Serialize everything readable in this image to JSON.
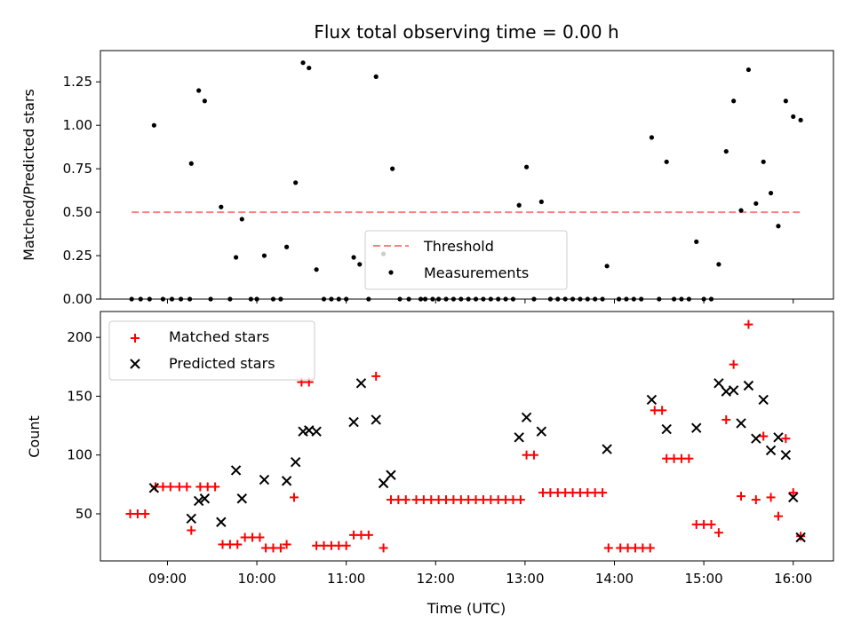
{
  "chart_data": [
    {
      "type": "scatter",
      "title": "Flux total observing time = 0.00 h",
      "xlabel": "",
      "ylabel": "Matched/Predicted stars",
      "ylim": [
        0,
        1.43
      ],
      "yticks": [
        "0.00",
        "0.25",
        "0.50",
        "0.75",
        "1.00",
        "1.25"
      ],
      "threshold": {
        "name": "Threshold",
        "value": 0.5,
        "x_range": [
          "08:36",
          "16:06"
        ],
        "color": "#ff7f7f",
        "style": "dashed"
      },
      "series": [
        {
          "name": "Measurements",
          "color": "#000000",
          "marker": "dot",
          "points": [
            [
              "08:36",
              0
            ],
            [
              "08:42",
              0
            ],
            [
              "08:48",
              0
            ],
            [
              "08:51",
              1.0
            ],
            [
              "08:57",
              0
            ],
            [
              "09:03",
              0
            ],
            [
              "09:09",
              0
            ],
            [
              "09:15",
              0
            ],
            [
              "09:16",
              0.78
            ],
            [
              "09:21",
              1.2
            ],
            [
              "09:25",
              1.14
            ],
            [
              "09:29",
              0
            ],
            [
              "09:36",
              0.53
            ],
            [
              "09:42",
              0
            ],
            [
              "09:46",
              0.24
            ],
            [
              "09:50",
              0.46
            ],
            [
              "09:56",
              0
            ],
            [
              "10:00",
              0
            ],
            [
              "10:05",
              0.25
            ],
            [
              "10:11",
              0
            ],
            [
              "10:16",
              0
            ],
            [
              "10:20",
              0.3
            ],
            [
              "10:26",
              0.67
            ],
            [
              "10:31",
              1.36
            ],
            [
              "10:35",
              1.33
            ],
            [
              "10:40",
              0.17
            ],
            [
              "10:45",
              0
            ],
            [
              "10:50",
              0
            ],
            [
              "10:55",
              0
            ],
            [
              "11:00",
              0
            ],
            [
              "11:05",
              0.24
            ],
            [
              "11:09",
              0.2
            ],
            [
              "11:15",
              0
            ],
            [
              "11:20",
              1.28
            ],
            [
              "11:25",
              0.26
            ],
            [
              "11:31",
              0.75
            ],
            [
              "11:36",
              0
            ],
            [
              "11:42",
              0
            ],
            [
              "11:50",
              0
            ],
            [
              "11:53",
              0
            ],
            [
              "11:58",
              0
            ],
            [
              "12:02",
              0
            ],
            [
              "12:07",
              0
            ],
            [
              "12:12",
              0
            ],
            [
              "12:17",
              0
            ],
            [
              "12:22",
              0
            ],
            [
              "12:27",
              0
            ],
            [
              "12:32",
              0
            ],
            [
              "12:37",
              0
            ],
            [
              "12:42",
              0
            ],
            [
              "12:47",
              0
            ],
            [
              "12:52",
              0
            ],
            [
              "12:56",
              0.54
            ],
            [
              "13:01",
              0.76
            ],
            [
              "13:06",
              0
            ],
            [
              "13:11",
              0.56
            ],
            [
              "13:17",
              0
            ],
            [
              "13:22",
              0
            ],
            [
              "13:27",
              0
            ],
            [
              "13:32",
              0
            ],
            [
              "13:37",
              0
            ],
            [
              "13:42",
              0
            ],
            [
              "13:47",
              0
            ],
            [
              "13:52",
              0
            ],
            [
              "13:55",
              0.19
            ],
            [
              "14:03",
              0
            ],
            [
              "14:08",
              0
            ],
            [
              "14:13",
              0
            ],
            [
              "14:18",
              0
            ],
            [
              "14:25",
              0.93
            ],
            [
              "14:30",
              0
            ],
            [
              "14:35",
              0.79
            ],
            [
              "14:40",
              0
            ],
            [
              "14:45",
              0
            ],
            [
              "14:50",
              0
            ],
            [
              "14:55",
              0.33
            ],
            [
              "15:00",
              0
            ],
            [
              "15:05",
              0
            ],
            [
              "15:10",
              0.2
            ],
            [
              "15:15",
              0.85
            ],
            [
              "15:20",
              1.14
            ],
            [
              "15:25",
              0.51
            ],
            [
              "15:30",
              1.32
            ],
            [
              "15:35",
              0.55
            ],
            [
              "15:40",
              0.79
            ],
            [
              "15:45",
              0.61
            ],
            [
              "15:50",
              0.42
            ],
            [
              "15:55",
              1.14
            ],
            [
              "16:00",
              1.05
            ],
            [
              "16:05",
              1.03
            ]
          ]
        }
      ],
      "legend": {
        "position": "lower-center",
        "entries": [
          "Threshold",
          "Measurements"
        ]
      },
      "grid": false
    },
    {
      "type": "scatter",
      "title": "",
      "xlabel": "Time (UTC)",
      "ylabel": "Count",
      "ylim": [
        10,
        222
      ],
      "yticks": [
        "50",
        "100",
        "150",
        "200"
      ],
      "xlim": [
        "08:15",
        "16:27"
      ],
      "xticks": [
        "09:00",
        "10:00",
        "11:00",
        "12:00",
        "13:00",
        "14:00",
        "15:00",
        "16:00"
      ],
      "series": [
        {
          "name": "Matched stars",
          "color": "#ff0000",
          "marker": "plus",
          "points": [
            [
              "08:35",
              50
            ],
            [
              "08:40",
              50
            ],
            [
              "08:45",
              50
            ],
            [
              "08:52",
              73
            ],
            [
              "08:57",
              73
            ],
            [
              "09:02",
              73
            ],
            [
              "09:08",
              73
            ],
            [
              "09:13",
              73
            ],
            [
              "09:16",
              36
            ],
            [
              "09:22",
              73
            ],
            [
              "09:27",
              73
            ],
            [
              "09:32",
              73
            ],
            [
              "09:37",
              24
            ],
            [
              "09:42",
              24
            ],
            [
              "09:47",
              24
            ],
            [
              "09:52",
              30
            ],
            [
              "09:57",
              30
            ],
            [
              "10:02",
              30
            ],
            [
              "10:06",
              21
            ],
            [
              "10:11",
              21
            ],
            [
              "10:16",
              21
            ],
            [
              "10:20",
              24
            ],
            [
              "10:25",
              64
            ],
            [
              "10:30",
              162
            ],
            [
              "10:35",
              162
            ],
            [
              "10:40",
              23
            ],
            [
              "10:45",
              23
            ],
            [
              "10:50",
              23
            ],
            [
              "10:55",
              23
            ],
            [
              "11:00",
              23
            ],
            [
              "11:05",
              32
            ],
            [
              "11:10",
              32
            ],
            [
              "11:15",
              32
            ],
            [
              "11:20",
              167
            ],
            [
              "11:25",
              21
            ],
            [
              "11:30",
              62
            ],
            [
              "11:35",
              62
            ],
            [
              "11:40",
              62
            ],
            [
              "11:47",
              62
            ],
            [
              "11:52",
              62
            ],
            [
              "11:57",
              62
            ],
            [
              "12:02",
              62
            ],
            [
              "12:07",
              62
            ],
            [
              "12:12",
              62
            ],
            [
              "12:17",
              62
            ],
            [
              "12:22",
              62
            ],
            [
              "12:27",
              62
            ],
            [
              "12:32",
              62
            ],
            [
              "12:37",
              62
            ],
            [
              "12:42",
              62
            ],
            [
              "12:47",
              62
            ],
            [
              "12:52",
              62
            ],
            [
              "12:57",
              62
            ],
            [
              "13:01",
              100
            ],
            [
              "13:06",
              100
            ],
            [
              "13:12",
              68
            ],
            [
              "13:17",
              68
            ],
            [
              "13:22",
              68
            ],
            [
              "13:27",
              68
            ],
            [
              "13:32",
              68
            ],
            [
              "13:37",
              68
            ],
            [
              "13:42",
              68
            ],
            [
              "13:47",
              68
            ],
            [
              "13:52",
              68
            ],
            [
              "13:56",
              21
            ],
            [
              "14:04",
              21
            ],
            [
              "14:09",
              21
            ],
            [
              "14:14",
              21
            ],
            [
              "14:19",
              21
            ],
            [
              "14:24",
              21
            ],
            [
              "14:27",
              138
            ],
            [
              "14:32",
              138
            ],
            [
              "14:35",
              97
            ],
            [
              "14:40",
              97
            ],
            [
              "14:45",
              97
            ],
            [
              "14:50",
              97
            ],
            [
              "14:55",
              41
            ],
            [
              "15:00",
              41
            ],
            [
              "15:05",
              41
            ],
            [
              "15:10",
              34
            ],
            [
              "15:15",
              130
            ],
            [
              "15:20",
              177
            ],
            [
              "15:25",
              65
            ],
            [
              "15:30",
              211
            ],
            [
              "15:35",
              62
            ],
            [
              "15:40",
              116
            ],
            [
              "15:45",
              64
            ],
            [
              "15:50",
              48
            ],
            [
              "15:55",
              114
            ],
            [
              "16:00",
              68
            ],
            [
              "16:05",
              31
            ]
          ]
        },
        {
          "name": "Predicted stars",
          "color": "#000000",
          "marker": "x",
          "points": [
            [
              "08:51",
              72
            ],
            [
              "09:16",
              46
            ],
            [
              "09:21",
              61
            ],
            [
              "09:25",
              63
            ],
            [
              "09:36",
              43
            ],
            [
              "09:46",
              87
            ],
            [
              "09:50",
              63
            ],
            [
              "10:05",
              79
            ],
            [
              "10:20",
              78
            ],
            [
              "10:26",
              94
            ],
            [
              "10:31",
              120
            ],
            [
              "10:35",
              121
            ],
            [
              "10:40",
              120
            ],
            [
              "11:05",
              128
            ],
            [
              "11:10",
              161
            ],
            [
              "11:20",
              130
            ],
            [
              "11:25",
              76
            ],
            [
              "11:30",
              83
            ],
            [
              "12:56",
              115
            ],
            [
              "13:01",
              132
            ],
            [
              "13:11",
              120
            ],
            [
              "13:55",
              105
            ],
            [
              "14:25",
              147
            ],
            [
              "14:35",
              122
            ],
            [
              "14:55",
              123
            ],
            [
              "15:10",
              161
            ],
            [
              "15:15",
              154
            ],
            [
              "15:20",
              155
            ],
            [
              "15:25",
              127
            ],
            [
              "15:30",
              159
            ],
            [
              "15:35",
              114
            ],
            [
              "15:40",
              147
            ],
            [
              "15:45",
              104
            ],
            [
              "15:50",
              115
            ],
            [
              "15:55",
              100
            ],
            [
              "16:00",
              64
            ],
            [
              "16:05",
              30
            ]
          ]
        }
      ],
      "legend": {
        "position": "top-left",
        "entries": [
          "Matched stars",
          "Predicted stars"
        ]
      },
      "grid": false
    }
  ]
}
